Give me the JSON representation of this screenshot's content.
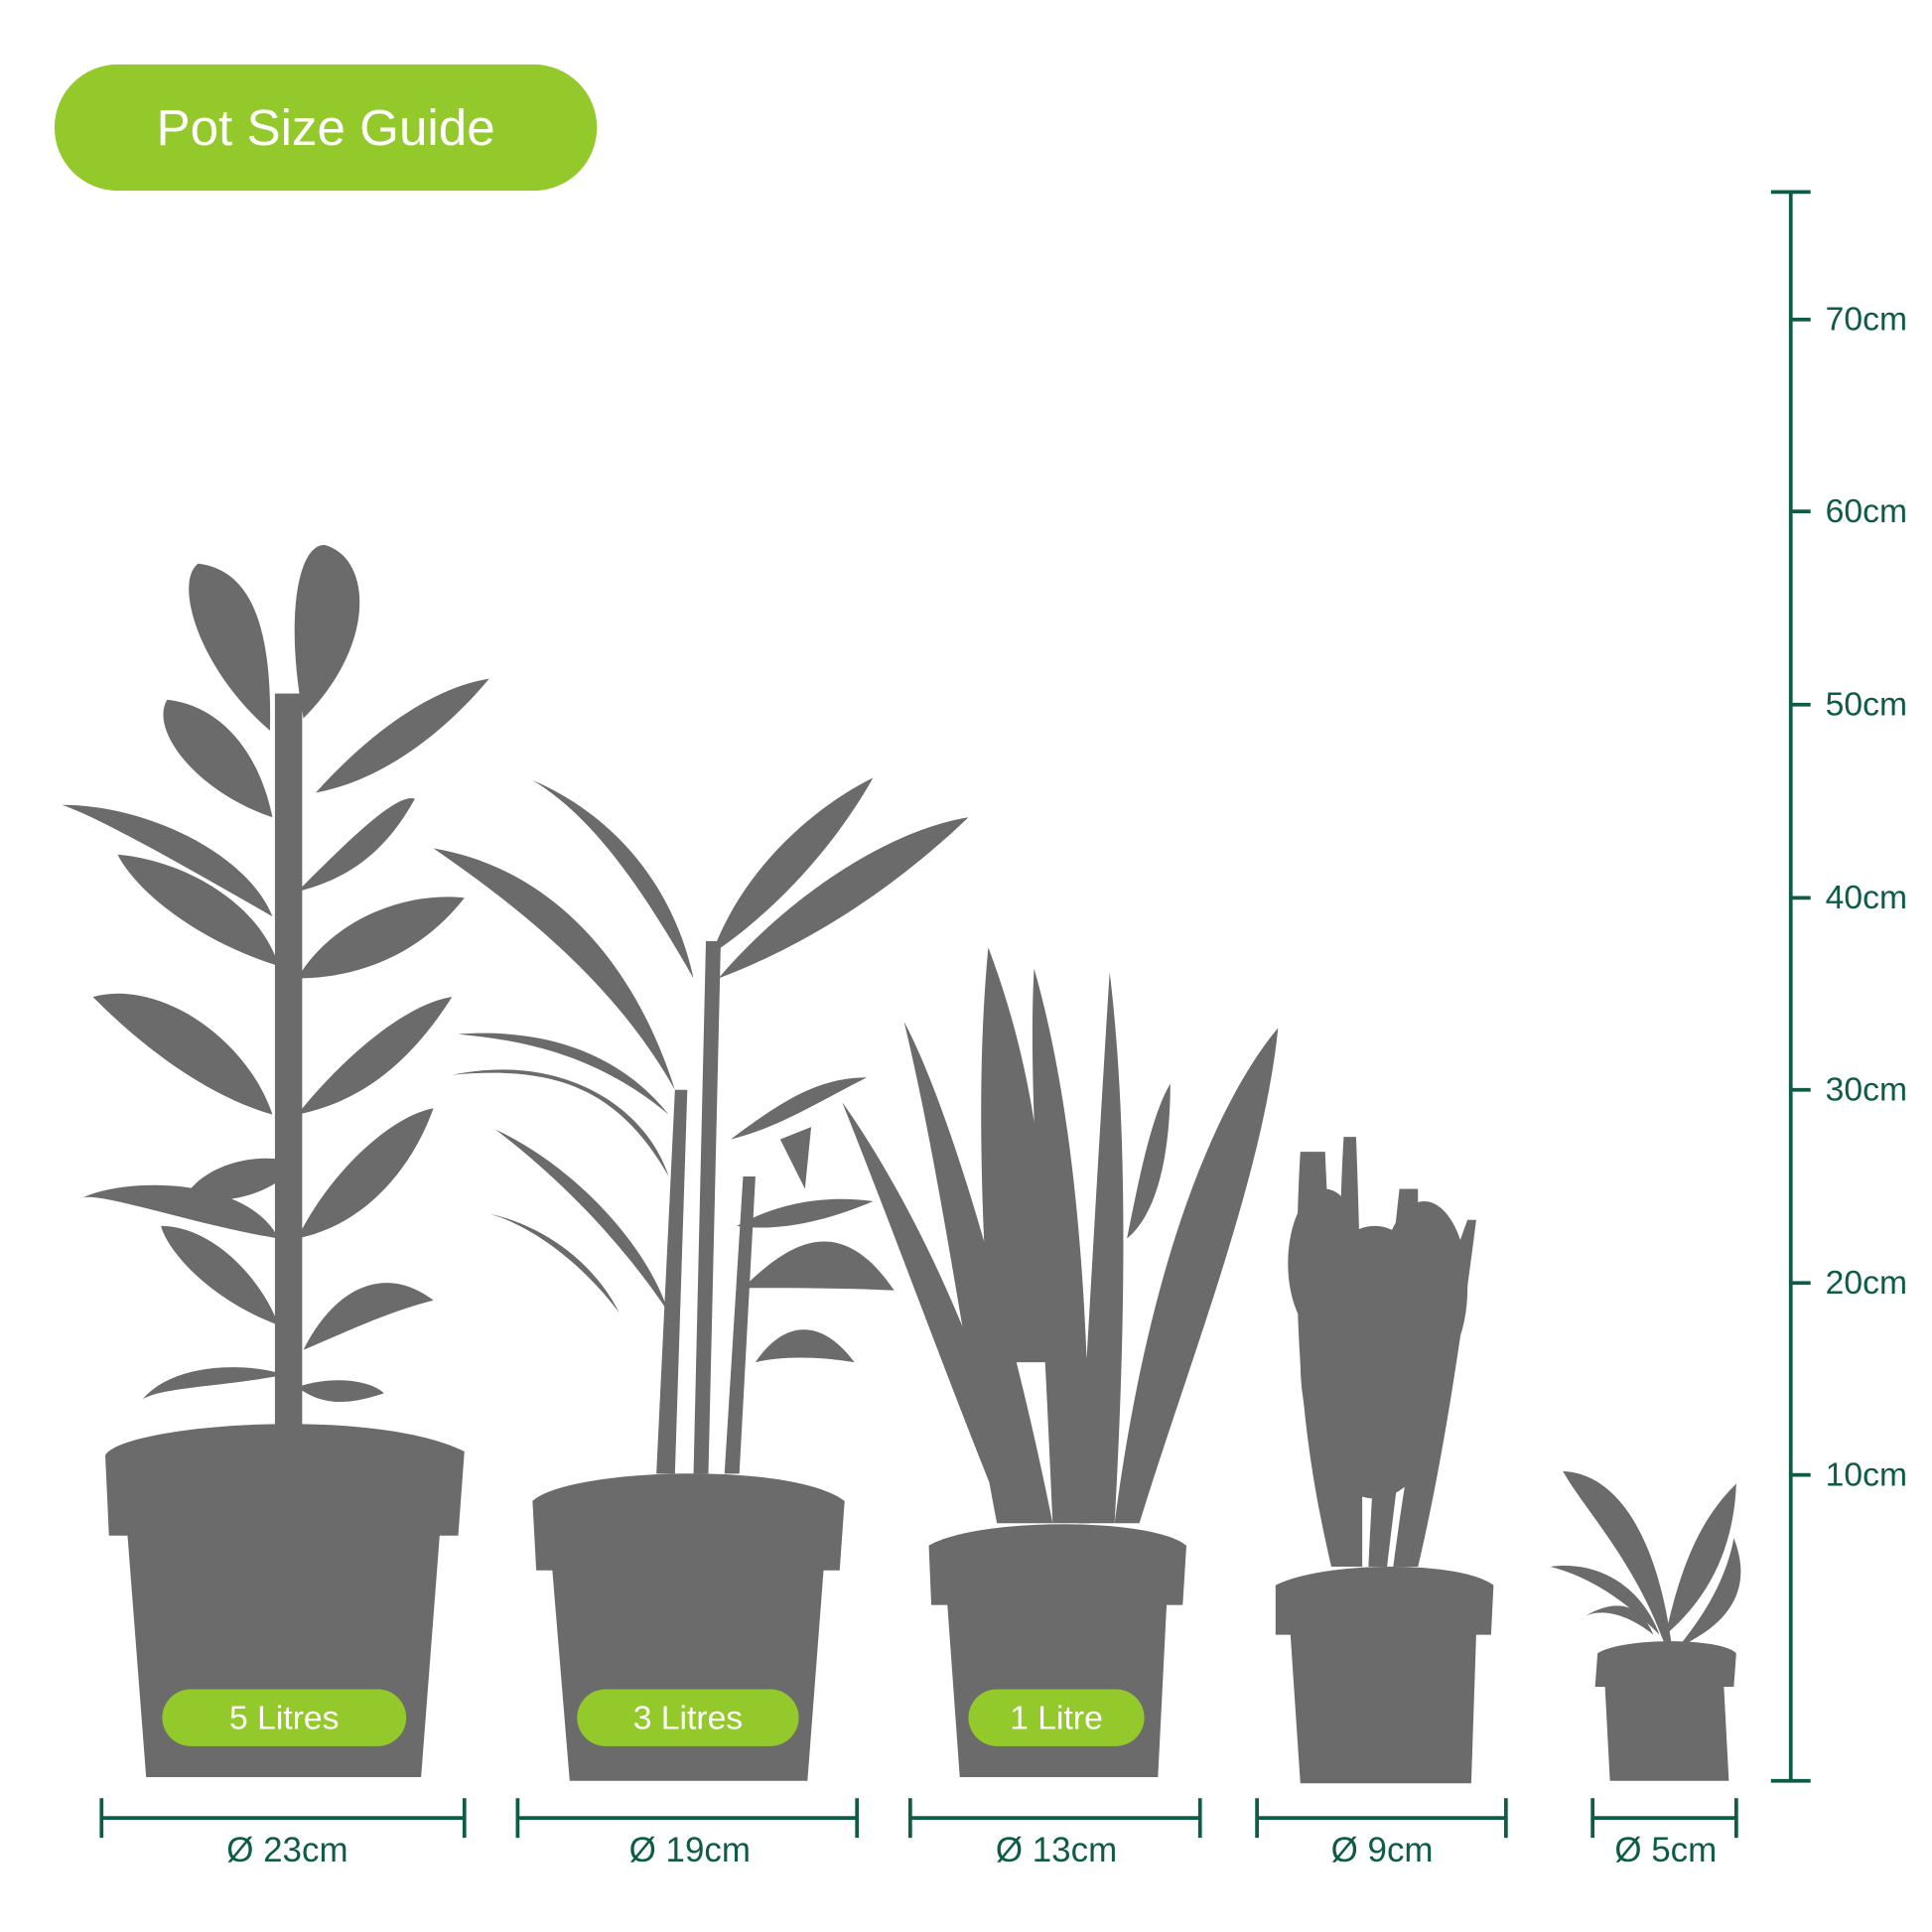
{
  "title": "Pot Size Guide",
  "colors": {
    "accent": "#93c92b",
    "scale": "#0e5c45",
    "silhouette": "#6b6b6b"
  },
  "height_scale": {
    "unit": "cm",
    "ticks": [
      "70cm",
      "60cm",
      "50cm",
      "40cm",
      "30cm",
      "20cm",
      "10cm"
    ]
  },
  "pots": [
    {
      "plant": "rubber-plant-silhouette",
      "volume": "5 Litres",
      "diameter": "Ø 23cm"
    },
    {
      "plant": "palm-silhouette",
      "volume": "3 Litres",
      "diameter": "Ø 19cm"
    },
    {
      "plant": "snake-plant-silhouette",
      "volume": "1 Litre",
      "diameter": "Ø 13cm"
    },
    {
      "plant": "shrub-silhouette",
      "volume": "",
      "diameter": "Ø 9cm"
    },
    {
      "plant": "small-plant-silhouette",
      "volume": "",
      "diameter": "Ø 5cm"
    }
  ]
}
